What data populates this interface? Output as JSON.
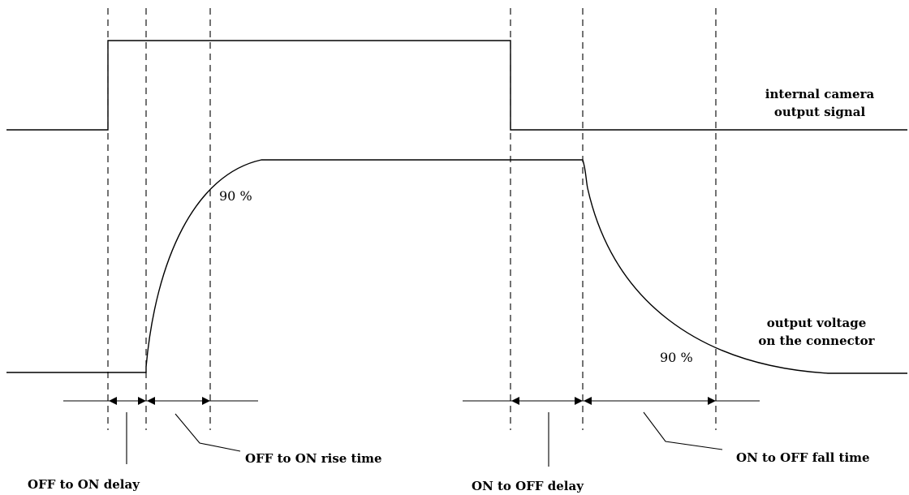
{
  "signals": {
    "internal_label_line1": "internal camera",
    "internal_label_line2": "output signal",
    "connector_label_line1": "output voltage",
    "connector_label_line2": "on the connector"
  },
  "markers": {
    "rise_percent": "90 %",
    "fall_percent": "90 %"
  },
  "intervals": {
    "off_to_on_delay": "OFF to ON delay",
    "off_to_on_rise_time": "OFF to ON rise time",
    "on_to_off_delay": "ON to OFF delay",
    "on_to_off_fall_time": "ON to OFF fall time"
  }
}
